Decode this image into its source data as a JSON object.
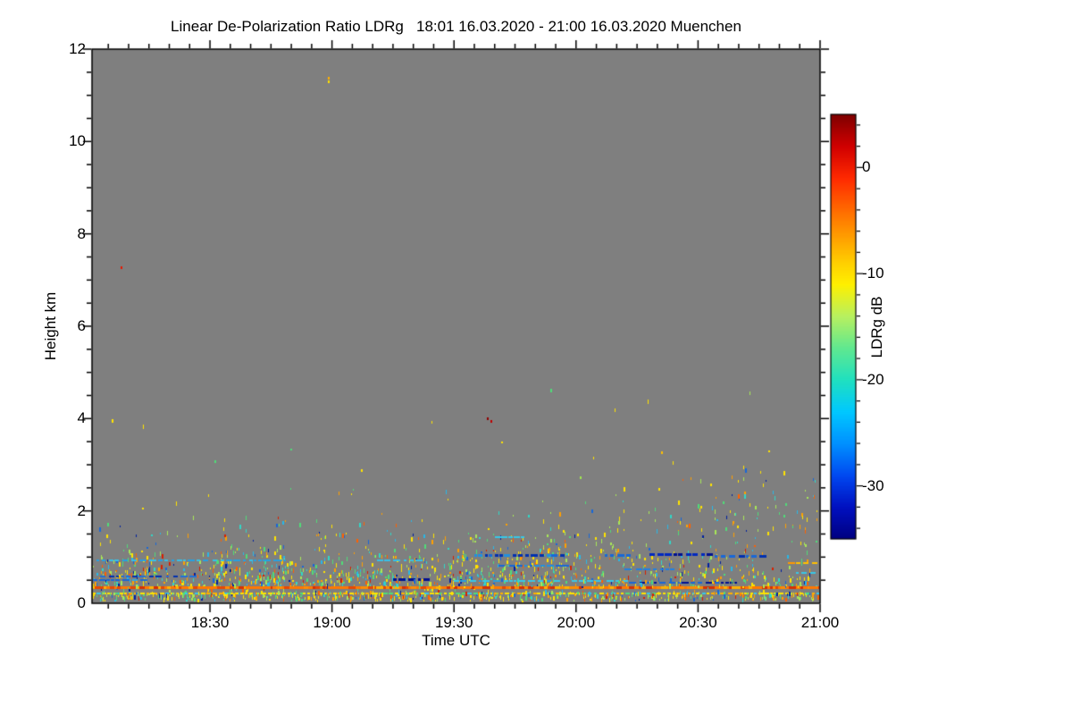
{
  "chart_data": {
    "type": "heatmap",
    "title": "Linear De-Polarization Ratio LDRg   18:01 16.03.2020 - 21:00 16.03.2020 Muenchen",
    "xlabel": "Time UTC",
    "ylabel": "Height km",
    "x_start": "18:01",
    "x_end": "21:00",
    "x_total_min": 179,
    "x_minor_tick_min": 5,
    "y_max": 12,
    "y_minor_tick_km": 0.5,
    "plot_bg": "#7f7f7f",
    "frame_color": "#000000",
    "render_seed": 9,
    "x_ticks": [
      {
        "t": 29,
        "label": "18:30"
      },
      {
        "t": 59,
        "label": "19:00"
      },
      {
        "t": 89,
        "label": "19:30"
      },
      {
        "t": 119,
        "label": "20:00"
      },
      {
        "t": 149,
        "label": "20:30"
      },
      {
        "t": 179,
        "label": "21:00"
      }
    ],
    "y_ticks": [
      {
        "v": 0,
        "label": "0"
      },
      {
        "v": 2,
        "label": "2"
      },
      {
        "v": 4,
        "label": "4"
      },
      {
        "v": 6,
        "label": "6"
      },
      {
        "v": 8,
        "label": "8"
      },
      {
        "v": 10,
        "label": "10"
      },
      {
        "v": 12,
        "label": "12"
      }
    ],
    "colorbar": {
      "label": "LDRg dB",
      "max": 5,
      "min": -35,
      "ticks": [
        {
          "v": 0,
          "label": "0"
        },
        {
          "v": -10,
          "label": "-10"
        },
        {
          "v": -20,
          "label": "-20"
        },
        {
          "v": -30,
          "label": "-30"
        }
      ],
      "minor_tick_db": 2,
      "colormap": "jet",
      "stops": [
        {
          "v": 5,
          "c": "#7f0000"
        },
        {
          "v": 2,
          "c": "#d10000"
        },
        {
          "v": -1,
          "c": "#ff2a00"
        },
        {
          "v": -5,
          "c": "#ff8000"
        },
        {
          "v": -9,
          "c": "#ffd000"
        },
        {
          "v": -11,
          "c": "#fff000"
        },
        {
          "v": -14,
          "c": "#b8f060"
        },
        {
          "v": -17,
          "c": "#60e890"
        },
        {
          "v": -20,
          "c": "#20e0c0"
        },
        {
          "v": -23,
          "c": "#00c8ff"
        },
        {
          "v": -26,
          "c": "#0090ff"
        },
        {
          "v": -29,
          "c": "#0048f0"
        },
        {
          "v": -32,
          "c": "#0010c0"
        },
        {
          "v": -35,
          "c": "#000080"
        }
      ]
    },
    "features": {
      "speck_colors": [
        {
          "c": "#ffe400",
          "w": 28
        },
        {
          "c": "#ffa000",
          "w": 12
        },
        {
          "c": "#ff6000",
          "w": 6
        },
        {
          "c": "#d82000",
          "w": 4
        },
        {
          "c": "#a8e858",
          "w": 14
        },
        {
          "c": "#50dc78",
          "w": 14
        },
        {
          "c": "#30d8c8",
          "w": 8
        },
        {
          "c": "#28b8e8",
          "w": 7
        },
        {
          "c": "#1868d8",
          "w": 4
        },
        {
          "c": "#0020a0",
          "w": 3
        }
      ],
      "base_cloud": {
        "n": 650,
        "h_min": 0.3,
        "h_scale": 0.55,
        "h_max": 2.6
      },
      "upper_sparse": {
        "n": 12,
        "h_min": 2.6,
        "h_max": 4.6
      },
      "clusters": [
        {
          "t": 41,
          "h": 0.55,
          "st": 9,
          "sh": 0.25,
          "n": 160
        },
        {
          "t": 10,
          "h": 0.6,
          "st": 7,
          "sh": 0.22,
          "n": 90
        },
        {
          "t": 83,
          "h": 0.5,
          "st": 13,
          "sh": 0.2,
          "n": 130
        },
        {
          "t": 107,
          "h": 0.9,
          "st": 11,
          "sh": 0.28,
          "n": 110
        },
        {
          "t": 129,
          "h": 1.3,
          "st": 18,
          "sh": 0.5,
          "n": 60
        },
        {
          "t": 162,
          "h": 2.0,
          "st": 13,
          "sh": 0.55,
          "n": 70
        },
        {
          "t": 60,
          "h": 1.1,
          "st": 25,
          "sh": 0.4,
          "n": 80
        }
      ],
      "band": {
        "h_max": 0.26,
        "p1": 0.38,
        "p2": 0.3,
        "p3": 0.1
      },
      "h_lines": [
        {
          "h": 0.33,
          "thick": 3,
          "style": "solid",
          "colors": [
            "#ff7800",
            "#ff7800",
            "#ff7800",
            "#ff8c00",
            "#e84800",
            "#ffb000",
            "#d83000"
          ]
        },
        {
          "h": 0.22,
          "thick": 2,
          "style": "dotted",
          "colors": [
            "#ffe400",
            "#ffe400",
            "#ffe400",
            "#ffe400",
            "#ffb000",
            "#38c8e8",
            "#50dc78"
          ]
        }
      ],
      "streaks": [
        {
          "t1": 1,
          "t2": 48,
          "h": 0.93,
          "thick": 2,
          "colors": [
            "#38c0e8",
            "#28a0e0"
          ]
        },
        {
          "t1": 70,
          "t2": 81,
          "h": 0.93,
          "thick": 2,
          "colors": [
            "#38c0e8"
          ]
        },
        {
          "t1": 94,
          "t2": 116,
          "h": 1.03,
          "thick": 3,
          "colors": [
            "#1868d8",
            "#0030b0",
            "#2090e0"
          ]
        },
        {
          "t1": 126,
          "t2": 132,
          "h": 1.03,
          "thick": 3,
          "colors": [
            "#1868d8"
          ]
        },
        {
          "t1": 137,
          "t2": 153,
          "h": 1.05,
          "thick": 3,
          "colors": [
            "#001090",
            "#0028c0"
          ]
        },
        {
          "t1": 153,
          "t2": 166,
          "h": 1.01,
          "thick": 3,
          "colors": [
            "#1868d8",
            "#0030b0"
          ]
        },
        {
          "t1": 100,
          "t2": 117,
          "h": 0.81,
          "thick": 2,
          "colors": [
            "#1868d8",
            "#2090e0"
          ]
        },
        {
          "t1": 131,
          "t2": 143,
          "h": 0.74,
          "thick": 2,
          "colors": [
            "#2080e0"
          ]
        },
        {
          "t1": 2,
          "t2": 25,
          "h": 0.58,
          "thick": 2,
          "colors": [
            "#2070d8",
            "#0030b0"
          ]
        },
        {
          "t1": 0,
          "t2": 13,
          "h": 0.5,
          "thick": 2,
          "colors": [
            "#30a8e0",
            "#1868d8"
          ]
        },
        {
          "t1": 74,
          "t2": 83,
          "h": 0.52,
          "thick": 3,
          "colors": [
            "#001090"
          ]
        },
        {
          "t1": 89,
          "t2": 115,
          "h": 0.48,
          "thick": 2,
          "colors": [
            "#38c8e8",
            "#28a0e0"
          ]
        },
        {
          "t1": 118,
          "t2": 131,
          "h": 0.48,
          "thick": 2,
          "colors": [
            "#38c8e8"
          ]
        },
        {
          "t1": 132,
          "t2": 157,
          "h": 0.45,
          "thick": 2,
          "colors": [
            "#1868d8",
            "#001090"
          ]
        },
        {
          "t1": 171,
          "t2": 178,
          "h": 0.87,
          "thick": 2,
          "colors": [
            "#ff9800",
            "#ffc000"
          ]
        },
        {
          "t1": 99,
          "t2": 106,
          "h": 1.43,
          "thick": 2,
          "colors": [
            "#38c8e8"
          ]
        },
        {
          "t1": 173,
          "t2": 178,
          "h": 0.66,
          "thick": 2,
          "colors": [
            "#38c8e8"
          ]
        }
      ],
      "dots": [
        {
          "t": 58,
          "h": 11.4,
          "c": "#ffb000"
        },
        {
          "t": 58,
          "h": 11.33,
          "c": "#ffe000"
        },
        {
          "t": 7,
          "h": 7.3,
          "c": "#e81800"
        },
        {
          "t": 97,
          "h": 4.03,
          "c": "#900000"
        },
        {
          "t": 98,
          "h": 3.96,
          "c": "#c00000"
        },
        {
          "t": 152,
          "h": 2.6,
          "c": "#ffe400"
        },
        {
          "t": 120,
          "h": 2.75,
          "c": "#a0e850"
        },
        {
          "t": 66,
          "h": 2.9,
          "c": "#ffe400"
        },
        {
          "t": 30,
          "h": 3.1,
          "c": "#50dc78"
        },
        {
          "t": 140,
          "h": 3.3,
          "c": "#ffc000"
        }
      ]
    }
  }
}
